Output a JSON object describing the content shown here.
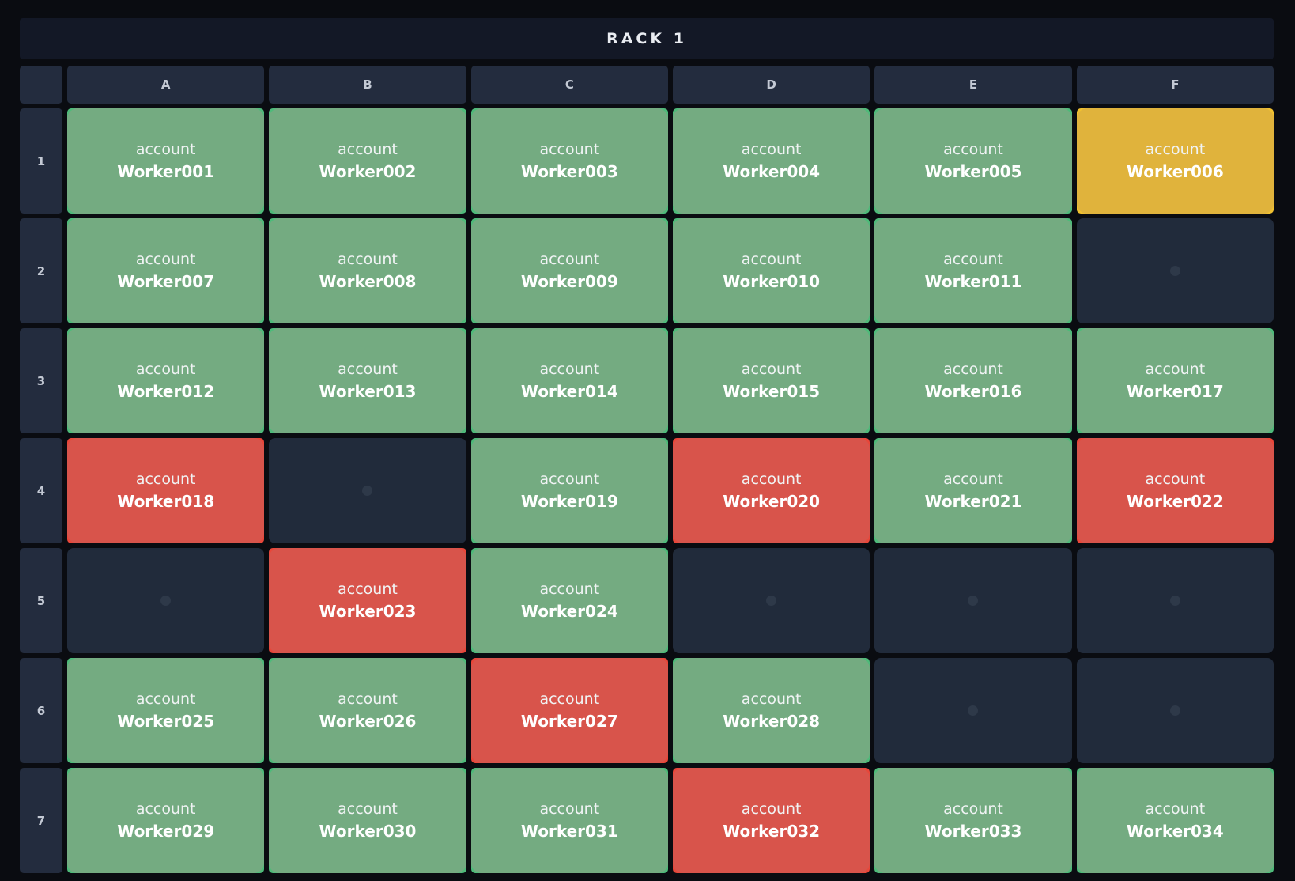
{
  "rack": {
    "title": "RACK 1",
    "account_label": "account",
    "column_headers": [
      "A",
      "B",
      "C",
      "D",
      "E",
      "F"
    ],
    "row_headers": [
      "1",
      "2",
      "3",
      "4",
      "5",
      "6",
      "7"
    ],
    "rows": [
      [
        {
          "worker": "Worker001",
          "status": "ok"
        },
        {
          "worker": "Worker002",
          "status": "ok"
        },
        {
          "worker": "Worker003",
          "status": "ok"
        },
        {
          "worker": "Worker004",
          "status": "ok"
        },
        {
          "worker": "Worker005",
          "status": "ok"
        },
        {
          "worker": "Worker006",
          "status": "warning"
        }
      ],
      [
        {
          "worker": "Worker007",
          "status": "ok"
        },
        {
          "worker": "Worker008",
          "status": "ok"
        },
        {
          "worker": "Worker009",
          "status": "ok"
        },
        {
          "worker": "Worker010",
          "status": "ok"
        },
        {
          "worker": "Worker011",
          "status": "ok"
        },
        {
          "status": "empty"
        }
      ],
      [
        {
          "worker": "Worker012",
          "status": "ok"
        },
        {
          "worker": "Worker013",
          "status": "ok"
        },
        {
          "worker": "Worker014",
          "status": "ok"
        },
        {
          "worker": "Worker015",
          "status": "ok"
        },
        {
          "worker": "Worker016",
          "status": "ok"
        },
        {
          "worker": "Worker017",
          "status": "ok"
        }
      ],
      [
        {
          "worker": "Worker018",
          "status": "error"
        },
        {
          "status": "empty"
        },
        {
          "worker": "Worker019",
          "status": "ok"
        },
        {
          "worker": "Worker020",
          "status": "error"
        },
        {
          "worker": "Worker021",
          "status": "ok"
        },
        {
          "worker": "Worker022",
          "status": "error"
        }
      ],
      [
        {
          "status": "empty"
        },
        {
          "worker": "Worker023",
          "status": "error"
        },
        {
          "worker": "Worker024",
          "status": "ok"
        },
        {
          "status": "empty"
        },
        {
          "status": "empty"
        },
        {
          "status": "empty"
        }
      ],
      [
        {
          "worker": "Worker025",
          "status": "ok"
        },
        {
          "worker": "Worker026",
          "status": "ok"
        },
        {
          "worker": "Worker027",
          "status": "error"
        },
        {
          "worker": "Worker028",
          "status": "ok"
        },
        {
          "status": "empty"
        },
        {
          "status": "empty"
        }
      ],
      [
        {
          "worker": "Worker029",
          "status": "ok"
        },
        {
          "worker": "Worker030",
          "status": "ok"
        },
        {
          "worker": "Worker031",
          "status": "ok"
        },
        {
          "worker": "Worker032",
          "status": "error"
        },
        {
          "worker": "Worker033",
          "status": "ok"
        },
        {
          "worker": "Worker034",
          "status": "ok"
        }
      ]
    ]
  },
  "status_colors": {
    "ok": {
      "inner": "#74ab81",
      "outer": "#4fba7a"
    },
    "warning": {
      "inner": "#e0b33c",
      "outer": "#f0c030"
    },
    "error": {
      "inner": "#d8544b",
      "outer": "#e8473a"
    },
    "empty": {
      "inner": "#212b3b",
      "dot": "#2e3949"
    }
  }
}
